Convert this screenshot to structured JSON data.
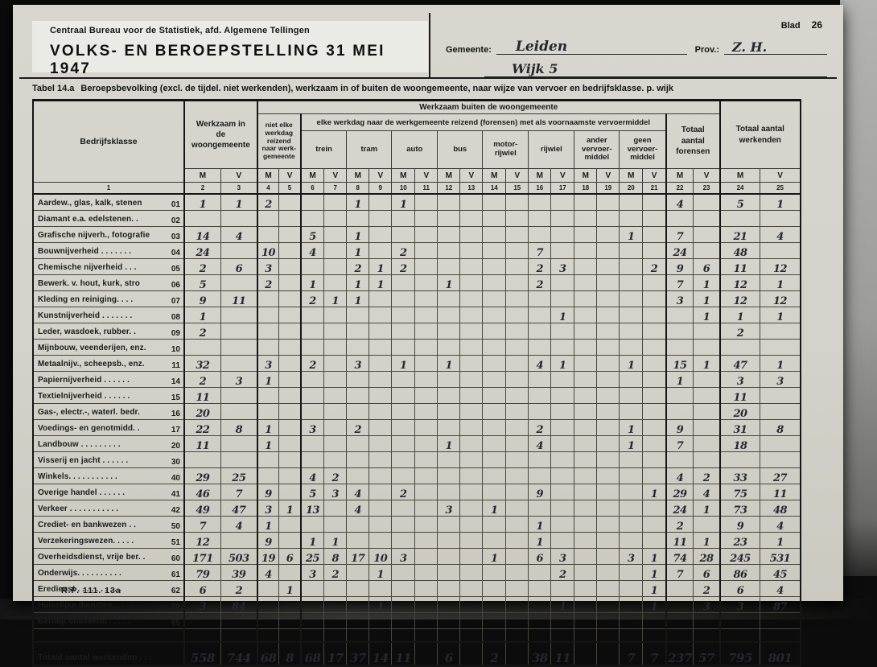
{
  "page": {
    "blad_label": "Blad",
    "blad_number": "26"
  },
  "header": {
    "agency": "Centraal Bureau voor de Statistiek, afd. Algemene Tellingen",
    "title": "VOLKS- EN BEROEPSTELLING 31 MEI 1947",
    "gemeente_label": "Gemeente:",
    "gemeente_value": "Leiden",
    "wijk_value": "Wijk 5",
    "prov_label": "Prov.:",
    "prov_value": "Z. H."
  },
  "table_title": {
    "prefix": "Tabel 14.a",
    "text": "Beroepsbevolking (excl. de tijdel. niet werkenden), werkzaam in of buiten de woongemeente, naar wijze van vervoer en bedrijfsklasse. p. wijk"
  },
  "table": {
    "headers": {
      "bedrijfsklasse": "Bedrijfsklasse",
      "werkzaam_woongemeente": "Werkzaam in de woongemeente",
      "werkzaam_buiten": "Werkzaam buiten de woongemeente",
      "niet_elke_werkdag": "niet elke werkdag reizend naar werk-gemeente",
      "elke_werkdag": "elke werkdag naar de werkgemeente reizend (forensen) met als voornaamste vervoermiddel",
      "vehicles": [
        "trein",
        "tram",
        "auto",
        "bus",
        "motor-rijwiel",
        "rijwiel",
        "ander vervoer-middel",
        "geen vervoer-middel"
      ],
      "totaal_forensen": "Totaal aantal forensen",
      "totaal_werkenden": "Totaal aantal werkenden",
      "m_label": "M",
      "v_label": "V",
      "col_numbers": [
        "1",
        "2",
        "3",
        "4",
        "5",
        "6",
        "7",
        "8",
        "9",
        "10",
        "11",
        "12",
        "13",
        "14",
        "15",
        "16",
        "17",
        "18",
        "19",
        "20",
        "21",
        "22",
        "23",
        "24",
        "25"
      ]
    },
    "rows": [
      {
        "code": "01",
        "label": "Aardew., glas, kalk, stenen",
        "values": [
          "1",
          "1",
          "2",
          "",
          "",
          "",
          "1",
          "",
          "1",
          "",
          "",
          "",
          "",
          "",
          "",
          "",
          "",
          "",
          "",
          "",
          "4",
          "",
          "5",
          "1"
        ]
      },
      {
        "code": "02",
        "label": "Diamant e.a. edelstenen. .",
        "values": [
          "",
          "",
          "",
          "",
          "",
          "",
          "",
          "",
          "",
          "",
          "",
          "",
          "",
          "",
          "",
          "",
          "",
          "",
          "",
          "",
          "",
          "",
          "",
          ""
        ]
      },
      {
        "code": "03",
        "label": "Grafische nijverh., fotografie",
        "values": [
          "14",
          "4",
          "",
          "",
          "5",
          "",
          "1",
          "",
          "",
          "",
          "",
          "",
          "",
          "",
          "",
          "",
          "",
          "",
          "1",
          "",
          "7",
          "",
          "21",
          "4"
        ]
      },
      {
        "code": "04",
        "label": "Bouwnijverheid . . . . . . .",
        "values": [
          "24",
          "",
          "10",
          "",
          "4",
          "",
          "1",
          "",
          "2",
          "",
          "",
          "",
          "",
          "",
          "7",
          "",
          "",
          "",
          "",
          "",
          "24",
          "",
          "48",
          ""
        ]
      },
      {
        "code": "05",
        "label": "Chemische nijverheid . . .",
        "values": [
          "2",
          "6",
          "3",
          "",
          "",
          "",
          "2",
          "1",
          "2",
          "",
          "",
          "",
          "",
          "",
          "2",
          "3",
          "",
          "",
          "",
          "2",
          "9",
          "6",
          "11",
          "12"
        ]
      },
      {
        "code": "06",
        "label": "Bewerk. v. hout, kurk, stro",
        "values": [
          "5",
          "",
          "2",
          "",
          "1",
          "",
          "1",
          "1",
          "",
          "",
          "1",
          "",
          "",
          "",
          "2",
          "",
          "",
          "",
          "",
          "",
          "7",
          "1",
          "12",
          "1"
        ]
      },
      {
        "code": "07",
        "label": "Kleding en reiniging. . . .",
        "values": [
          "9",
          "11",
          "",
          "",
          "2",
          "1",
          "1",
          "",
          "",
          "",
          "",
          "",
          "",
          "",
          "",
          "",
          "",
          "",
          "",
          "",
          "3",
          "1",
          "12",
          "12"
        ]
      },
      {
        "code": "08",
        "label": "Kunstnijverheid . . . . . . .",
        "values": [
          "1",
          "",
          "",
          "",
          "",
          "",
          "",
          "",
          "",
          "",
          "",
          "",
          "",
          "",
          "",
          "1",
          "",
          "",
          "",
          "",
          "",
          "1",
          "1",
          "1"
        ]
      },
      {
        "code": "09",
        "label": "Leder, wasdoek, rubber. .",
        "values": [
          "2",
          "",
          "",
          "",
          "",
          "",
          "",
          "",
          "",
          "",
          "",
          "",
          "",
          "",
          "",
          "",
          "",
          "",
          "",
          "",
          "",
          "",
          "2",
          ""
        ]
      },
      {
        "code": "10",
        "label": "Mijnbouw, veenderijen, enz.",
        "values": [
          "",
          "",
          "",
          "",
          "",
          "",
          "",
          "",
          "",
          "",
          "",
          "",
          "",
          "",
          "",
          "",
          "",
          "",
          "",
          "",
          "",
          "",
          "",
          ""
        ]
      },
      {
        "code": "11",
        "label": "Metaalnijv., scheepsb., enz.",
        "values": [
          "32",
          "",
          "3",
          "",
          "2",
          "",
          "3",
          "",
          "1",
          "",
          "1",
          "",
          "",
          "",
          "4",
          "1",
          "",
          "",
          "1",
          "",
          "15",
          "1",
          "47",
          "1"
        ]
      },
      {
        "code": "14",
        "label": "Papiernijverheid . . . . . .",
        "values": [
          "2",
          "3",
          "1",
          "",
          "",
          "",
          "",
          "",
          "",
          "",
          "",
          "",
          "",
          "",
          "",
          "",
          "",
          "",
          "",
          "",
          "1",
          "",
          "3",
          "3"
        ]
      },
      {
        "code": "15",
        "label": "Textielnijverheid . . . . . .",
        "values": [
          "11",
          "",
          "",
          "",
          "",
          "",
          "",
          "",
          "",
          "",
          "",
          "",
          "",
          "",
          "",
          "",
          "",
          "",
          "",
          "",
          "",
          "",
          "11",
          ""
        ]
      },
      {
        "code": "16",
        "label": "Gas-, electr.-, waterl. bedr.",
        "values": [
          "20",
          "",
          "",
          "",
          "",
          "",
          "",
          "",
          "",
          "",
          "",
          "",
          "",
          "",
          "",
          "",
          "",
          "",
          "",
          "",
          "",
          "",
          "20",
          ""
        ]
      },
      {
        "code": "17",
        "label": "Voedings- en genotmidd. .",
        "values": [
          "22",
          "8",
          "1",
          "",
          "3",
          "",
          "2",
          "",
          "",
          "",
          "",
          "",
          "",
          "",
          "2",
          "",
          "",
          "",
          "1",
          "",
          "9",
          "",
          "31",
          "8"
        ]
      },
      {
        "code": "20",
        "label": "Landbouw . . . . . . . . .",
        "values": [
          "11",
          "",
          "1",
          "",
          "",
          "",
          "",
          "",
          "",
          "",
          "1",
          "",
          "",
          "",
          "4",
          "",
          "",
          "",
          "1",
          "",
          "7",
          "",
          "18",
          ""
        ]
      },
      {
        "code": "30",
        "label": "Visserij en jacht . . . . . .",
        "values": [
          "",
          "",
          "",
          "",
          "",
          "",
          "",
          "",
          "",
          "",
          "",
          "",
          "",
          "",
          "",
          "",
          "",
          "",
          "",
          "",
          "",
          "",
          "",
          ""
        ]
      },
      {
        "code": "40",
        "label": "Winkels. . . . . . . . . . .",
        "values": [
          "29",
          "25",
          "",
          "",
          "4",
          "2",
          "",
          "",
          "",
          "",
          "",
          "",
          "",
          "",
          "",
          "",
          "",
          "",
          "",
          "",
          "4",
          "2",
          "33",
          "27"
        ]
      },
      {
        "code": "41",
        "label": "Overige handel . . . . . .",
        "values": [
          "46",
          "7",
          "9",
          "",
          "5",
          "3",
          "4",
          "",
          "2",
          "",
          "",
          "",
          "",
          "",
          "9",
          "",
          "",
          "",
          "",
          "1",
          "29",
          "4",
          "75",
          "11"
        ]
      },
      {
        "code": "42",
        "label": "Verkeer . . . . . . . . . . .",
        "values": [
          "49",
          "47",
          "3",
          "1",
          "13",
          "",
          "4",
          "",
          "",
          "",
          "3",
          "",
          "1",
          "",
          "",
          "",
          "",
          "",
          "",
          "",
          "24",
          "1",
          "73",
          "48"
        ]
      },
      {
        "code": "50",
        "label": "Crediet- en bankwezen . .",
        "values": [
          "7",
          "4",
          "1",
          "",
          "",
          "",
          "",
          "",
          "",
          "",
          "",
          "",
          "",
          "",
          "1",
          "",
          "",
          "",
          "",
          "",
          "2",
          "",
          "9",
          "4"
        ]
      },
      {
        "code": "51",
        "label": "Verzekeringswezen. . . . .",
        "values": [
          "12",
          "",
          "9",
          "",
          "1",
          "1",
          "",
          "",
          "",
          "",
          "",
          "",
          "",
          "",
          "1",
          "",
          "",
          "",
          "",
          "",
          "11",
          "1",
          "23",
          "1"
        ]
      },
      {
        "code": "60",
        "label": "Overheidsdienst, vrije ber. .",
        "values": [
          "171",
          "503",
          "19",
          "6",
          "25",
          "8",
          "17",
          "10",
          "3",
          "",
          "",
          "",
          "1",
          "",
          "6",
          "3",
          "",
          "",
          "3",
          "1",
          "74",
          "28",
          "245",
          "531"
        ]
      },
      {
        "code": "61",
        "label": "Onderwijs. . . . . . . . . .",
        "values": [
          "79",
          "39",
          "4",
          "",
          "3",
          "2",
          "",
          "1",
          "",
          "",
          "",
          "",
          "",
          "",
          "",
          "2",
          "",
          "",
          "",
          "1",
          "7",
          "6",
          "86",
          "45"
        ]
      },
      {
        "code": "62",
        "label": "Eredienst . . . . . . . . . .",
        "values": [
          "6",
          "2",
          "",
          "1",
          "",
          "",
          "",
          "",
          "",
          "",
          "",
          "",
          "",
          "",
          "",
          "",
          "",
          "",
          "",
          "1",
          "",
          "2",
          "6",
          "4"
        ]
      },
      {
        "code": "70",
        "label": "Huiselijke diensten. . . . .",
        "values": [
          "3",
          "84",
          "",
          "",
          "",
          "",
          "",
          "1",
          "",
          "",
          "",
          "",
          "",
          "",
          "",
          "1",
          "",
          "",
          "",
          "1",
          "",
          "3",
          "3",
          "87"
        ]
      },
      {
        "code": "85",
        "label": "Beroep onbekend . . . . .",
        "values": [
          "",
          "",
          "",
          "",
          "",
          "",
          "",
          "",
          "",
          "",
          "",
          "",
          "",
          "",
          "",
          "",
          "",
          "",
          "",
          "",
          "",
          "",
          "",
          ""
        ]
      }
    ],
    "total_row": {
      "code": "",
      "label": "Totaal aantal werkenden . . .",
      "values": [
        "558",
        "744",
        "68",
        "8",
        "68",
        "17",
        "37",
        "14",
        "11",
        "",
        "6",
        "",
        "2",
        "",
        "38",
        "11",
        "",
        "",
        "7",
        "7",
        "237",
        "57",
        "795",
        "801"
      ]
    }
  },
  "footer": {
    "form_number": "R.P. 111. 13a"
  }
}
